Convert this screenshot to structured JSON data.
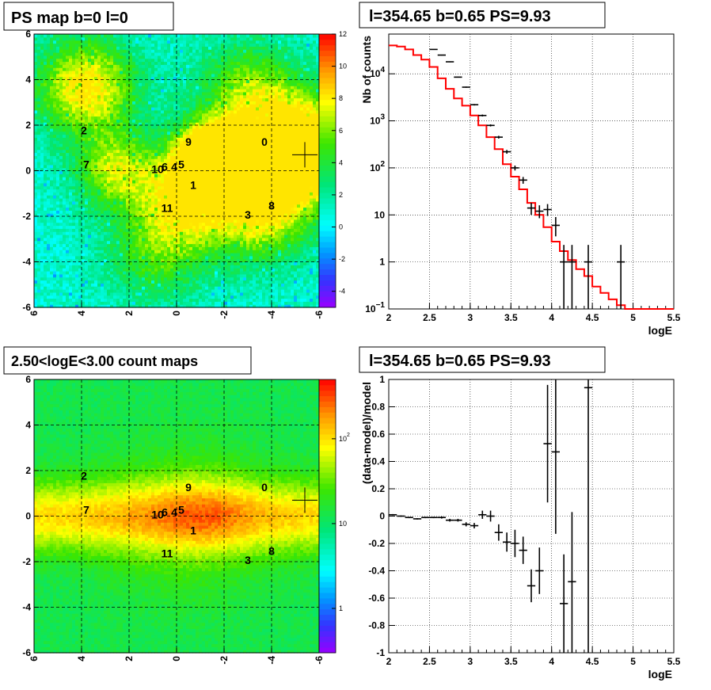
{
  "titles": {
    "ps_map": "PS map b=0 l=0",
    "spectrum": "l=354.65 b=0.65 PS=9.93",
    "count_map": "2.50<logE<3.00 count maps",
    "residual": "l=354.65 b=0.65 PS=9.93"
  },
  "chart_data": [
    {
      "id": "ps_map",
      "type": "heatmap",
      "title": "PS map b=0 l=0",
      "xlim": [
        6,
        -6
      ],
      "ylim": [
        -6,
        6
      ],
      "x_ticks": [
        "6",
        "4",
        "2",
        "0",
        "-2",
        "-4",
        "-6"
      ],
      "y_ticks": [
        "6",
        "4",
        "2",
        "0",
        "-2",
        "-4",
        "-6"
      ],
      "z_range": [
        -5,
        12
      ],
      "palette_ticks": [
        "12",
        "10",
        "8",
        "6",
        "4",
        "2",
        "0",
        "-2",
        "-4"
      ],
      "grid": true,
      "marker": {
        "x": -5.4,
        "y": 0.7
      },
      "sources": [
        {
          "label": "0",
          "x": -3.7,
          "y": 1.1
        },
        {
          "label": "1",
          "x": -0.7,
          "y": -0.8
        },
        {
          "label": "2",
          "x": 3.9,
          "y": 1.6
        },
        {
          "label": "3",
          "x": -3.0,
          "y": -2.1
        },
        {
          "label": "4",
          "x": 0.1,
          "y": 0.0
        },
        {
          "label": "5",
          "x": -0.2,
          "y": 0.1
        },
        {
          "label": "6",
          "x": 0.5,
          "y": 0.0
        },
        {
          "label": "7",
          "x": 3.8,
          "y": 0.1
        },
        {
          "label": "8",
          "x": -4.0,
          "y": -1.7
        },
        {
          "label": "9",
          "x": -0.5,
          "y": 1.1
        },
        {
          "label": "10",
          "x": 0.8,
          "y": -0.1
        },
        {
          "label": "11",
          "x": 0.4,
          "y": -1.8
        }
      ]
    },
    {
      "id": "spectrum",
      "type": "line",
      "title": "l=354.65 b=0.65 PS=9.93",
      "xlabel": "logE",
      "ylabel": "Nb of counts",
      "xlim": [
        2,
        5.5
      ],
      "ylim": [
        0.1,
        70000
      ],
      "log_y": true,
      "grid": true,
      "x_ticks": [
        "2",
        "2.5",
        "3",
        "3.5",
        "4",
        "4.5",
        "5",
        "5.5"
      ],
      "y_ticks": [
        {
          "value": 0.1,
          "label": "10",
          "exp": "−1"
        },
        {
          "value": 1,
          "label": "1",
          "exp": ""
        },
        {
          "value": 10,
          "label": "10",
          "exp": ""
        },
        {
          "value": 100,
          "label": "10",
          "exp": "2"
        },
        {
          "value": 1000,
          "label": "10",
          "exp": "3"
        },
        {
          "value": 10000,
          "label": "10",
          "exp": "4"
        }
      ],
      "model_color": "#ff0000",
      "model_edges": [
        2.0,
        2.1,
        2.2,
        2.3,
        2.4,
        2.5,
        2.6,
        2.7,
        2.8,
        2.9,
        3.0,
        3.1,
        3.2,
        3.3,
        3.4,
        3.5,
        3.6,
        3.7,
        3.8,
        3.9,
        4.0,
        4.1,
        4.2,
        4.3,
        4.4,
        4.5,
        4.6,
        4.7,
        4.8,
        4.9,
        5.0,
        5.5
      ],
      "model_values": [
        40000,
        38000,
        33000,
        25000,
        20000,
        14000,
        8000,
        4800,
        3000,
        2100,
        1300,
        800,
        450,
        250,
        120,
        65,
        35,
        18,
        10,
        5.5,
        2.7,
        1.7,
        1.1,
        0.7,
        0.5,
        0.3,
        0.22,
        0.16,
        0.12,
        0.1,
        0.1
      ],
      "points": [
        {
          "x": 2.55,
          "y": 33000,
          "xerr": 0.05,
          "ylo": 32500,
          "yhi": 33500
        },
        {
          "x": 2.65,
          "y": 25000,
          "xerr": 0.05,
          "ylo": 24500,
          "yhi": 25500
        },
        {
          "x": 2.75,
          "y": 18000,
          "xerr": 0.05,
          "ylo": 17600,
          "yhi": 18400
        },
        {
          "x": 2.85,
          "y": 8500,
          "xerr": 0.05,
          "ylo": 8300,
          "yhi": 8700
        },
        {
          "x": 2.95,
          "y": 5200,
          "xerr": 0.05,
          "ylo": 5050,
          "yhi": 5350
        },
        {
          "x": 3.05,
          "y": 2200,
          "xerr": 0.05,
          "ylo": 2120,
          "yhi": 2280
        },
        {
          "x": 3.15,
          "y": 1300,
          "xerr": 0.05,
          "ylo": 1240,
          "yhi": 1360
        },
        {
          "x": 3.25,
          "y": 800,
          "xerr": 0.05,
          "ylo": 760,
          "yhi": 840
        },
        {
          "x": 3.35,
          "y": 450,
          "xerr": 0.05,
          "ylo": 420,
          "yhi": 480
        },
        {
          "x": 3.45,
          "y": 220,
          "xerr": 0.05,
          "ylo": 200,
          "yhi": 240
        },
        {
          "x": 3.55,
          "y": 100,
          "xerr": 0.05,
          "ylo": 88,
          "yhi": 112
        },
        {
          "x": 3.65,
          "y": 55,
          "xerr": 0.05,
          "ylo": 46,
          "yhi": 64
        },
        {
          "x": 3.75,
          "y": 14,
          "xerr": 0.05,
          "ylo": 10,
          "yhi": 18
        },
        {
          "x": 3.85,
          "y": 12,
          "xerr": 0.05,
          "ylo": 8.5,
          "yhi": 16
        },
        {
          "x": 3.95,
          "y": 13,
          "xerr": 0.05,
          "ylo": 9.5,
          "yhi": 17
        },
        {
          "x": 4.05,
          "y": 6,
          "xerr": 0.05,
          "ylo": 3.5,
          "yhi": 9
        },
        {
          "x": 4.15,
          "y": 1,
          "xerr": 0.05,
          "ylo": 0.1,
          "yhi": 2.3
        },
        {
          "x": 4.25,
          "y": 1,
          "xerr": 0.05,
          "ylo": 0.1,
          "yhi": 2.3
        },
        {
          "x": 4.45,
          "y": 1,
          "xerr": 0.05,
          "ylo": 0.1,
          "yhi": 2.3
        },
        {
          "x": 4.85,
          "y": 1,
          "xerr": 0.05,
          "ylo": 0.1,
          "yhi": 2.3
        }
      ]
    },
    {
      "id": "count_map",
      "type": "heatmap",
      "title": "2.50<logE<3.00 count maps",
      "xlim": [
        6,
        -6
      ],
      "ylim": [
        -6,
        6
      ],
      "x_ticks": [
        "6",
        "4",
        "2",
        "0",
        "-2",
        "-4",
        "-6"
      ],
      "y_ticks": [
        "6",
        "4",
        "2",
        "0",
        "-2",
        "-4",
        "-6"
      ],
      "log_z": true,
      "z_range": [
        0.3,
        500
      ],
      "palette_ticks": [
        {
          "value": 100,
          "label": "10",
          "exp": "2"
        },
        {
          "value": 10,
          "label": "10",
          "exp": ""
        },
        {
          "value": 1,
          "label": "1",
          "exp": ""
        }
      ],
      "grid": true,
      "marker": {
        "x": -5.4,
        "y": 0.7
      },
      "sources": [
        {
          "label": "0",
          "x": -3.7,
          "y": 1.1
        },
        {
          "label": "1",
          "x": -0.7,
          "y": -0.8
        },
        {
          "label": "2",
          "x": 3.9,
          "y": 1.6
        },
        {
          "label": "3",
          "x": -3.0,
          "y": -2.1
        },
        {
          "label": "4",
          "x": 0.1,
          "y": 0.0
        },
        {
          "label": "5",
          "x": -0.2,
          "y": 0.1
        },
        {
          "label": "6",
          "x": 0.5,
          "y": 0.0
        },
        {
          "label": "7",
          "x": 3.8,
          "y": 0.1
        },
        {
          "label": "8",
          "x": -4.0,
          "y": -1.7
        },
        {
          "label": "9",
          "x": -0.5,
          "y": 1.1
        },
        {
          "label": "10",
          "x": 0.8,
          "y": -0.1
        },
        {
          "label": "11",
          "x": 0.4,
          "y": -1.8
        }
      ]
    },
    {
      "id": "residual",
      "type": "scatter",
      "title": "l=354.65 b=0.65 PS=9.93",
      "xlabel": "logE",
      "ylabel": "(data-model)/model",
      "xlim": [
        2,
        5.5
      ],
      "ylim": [
        -1,
        1
      ],
      "grid": true,
      "x_ticks": [
        "2",
        "2.5",
        "3",
        "3.5",
        "4",
        "4.5",
        "5",
        "5.5"
      ],
      "y_ticks": [
        "1",
        "0.8",
        "0.6",
        "0.4",
        "0.2",
        "0",
        "-0.2",
        "-0.4",
        "-0.6",
        "-0.8",
        "-1"
      ],
      "points": [
        {
          "x": 2.05,
          "y": 0.01,
          "xerr": 0.05,
          "ylo": 0.005,
          "yhi": 0.015
        },
        {
          "x": 2.15,
          "y": 0.0,
          "xerr": 0.05,
          "ylo": -0.005,
          "yhi": 0.005
        },
        {
          "x": 2.25,
          "y": -0.01,
          "xerr": 0.05,
          "ylo": -0.015,
          "yhi": -0.005
        },
        {
          "x": 2.35,
          "y": -0.02,
          "xerr": 0.05,
          "ylo": -0.025,
          "yhi": -0.015
        },
        {
          "x": 2.45,
          "y": -0.01,
          "xerr": 0.05,
          "ylo": -0.015,
          "yhi": -0.005
        },
        {
          "x": 2.55,
          "y": -0.01,
          "xerr": 0.05,
          "ylo": -0.015,
          "yhi": -0.005
        },
        {
          "x": 2.65,
          "y": -0.01,
          "xerr": 0.05,
          "ylo": -0.018,
          "yhi": -0.002
        },
        {
          "x": 2.75,
          "y": -0.03,
          "xerr": 0.05,
          "ylo": -0.04,
          "yhi": -0.02
        },
        {
          "x": 2.85,
          "y": -0.03,
          "xerr": 0.05,
          "ylo": -0.04,
          "yhi": -0.02
        },
        {
          "x": 2.95,
          "y": -0.06,
          "xerr": 0.05,
          "ylo": -0.075,
          "yhi": -0.045
        },
        {
          "x": 3.05,
          "y": -0.07,
          "xerr": 0.05,
          "ylo": -0.09,
          "yhi": -0.05
        },
        {
          "x": 3.15,
          "y": 0.01,
          "xerr": 0.05,
          "ylo": -0.02,
          "yhi": 0.04
        },
        {
          "x": 3.25,
          "y": 0.0,
          "xerr": 0.05,
          "ylo": -0.04,
          "yhi": 0.04
        },
        {
          "x": 3.35,
          "y": -0.12,
          "xerr": 0.05,
          "ylo": -0.18,
          "yhi": -0.06
        },
        {
          "x": 3.45,
          "y": -0.19,
          "xerr": 0.05,
          "ylo": -0.26,
          "yhi": -0.12
        },
        {
          "x": 3.55,
          "y": -0.2,
          "xerr": 0.05,
          "ylo": -0.3,
          "yhi": -0.1
        },
        {
          "x": 3.65,
          "y": -0.25,
          "xerr": 0.05,
          "ylo": -0.35,
          "yhi": -0.15
        },
        {
          "x": 3.75,
          "y": -0.51,
          "xerr": 0.05,
          "ylo": -0.63,
          "yhi": -0.39
        },
        {
          "x": 3.85,
          "y": -0.4,
          "xerr": 0.05,
          "ylo": -0.57,
          "yhi": -0.23
        },
        {
          "x": 3.95,
          "y": 0.53,
          "xerr": 0.05,
          "ylo": 0.1,
          "yhi": 0.96
        },
        {
          "x": 4.05,
          "y": 0.47,
          "xerr": 0.05,
          "ylo": -0.13,
          "yhi": 1.0
        },
        {
          "x": 4.15,
          "y": -0.64,
          "xerr": 0.05,
          "ylo": -1.0,
          "yhi": -0.28
        },
        {
          "x": 4.25,
          "y": -0.48,
          "xerr": 0.05,
          "ylo": -1.0,
          "yhi": 0.03
        },
        {
          "x": 4.45,
          "y": 0.94,
          "xerr": 0.05,
          "ylo": -1.0,
          "yhi": 1.0
        }
      ]
    }
  ]
}
